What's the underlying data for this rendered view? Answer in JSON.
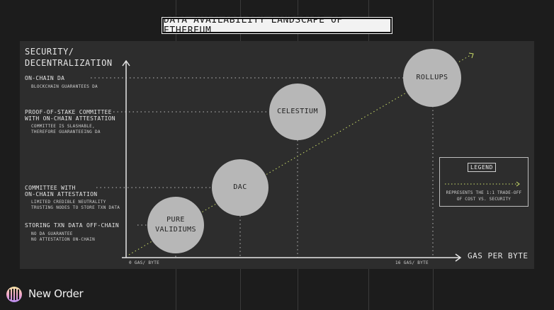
{
  "title": "DATA AVAILABILITY LANDSCAPE OF ETHEREUM",
  "y_axis_title": "SECURITY/\nDECENTRALIZATION",
  "x_axis_title": "GAS PER BYTE",
  "x_ticks": [
    "0 GAS/ BYTE",
    "16 GAS/ BYTE"
  ],
  "levels": [
    {
      "title": "ON-CHAIN DA",
      "desc": "BLOCKCHAIN GUARANTEES DA"
    },
    {
      "title": "PROOF-OF-STAKE COMMITTEE\nWITH ON-CHAIN ATTESTATION",
      "desc": "COMMITTEE IS SLASHABLE,\nTHEREFORE GUARANTEEING DA"
    },
    {
      "title": "COMMITTEE WITH\nON-CHAIN ATTESTATION",
      "desc": "LIMITED CREDIBLE NEUTRALITY\nTRUSTING NODES TO STORE TXN DATA"
    },
    {
      "title": "STORING TXN DATA OFF-CHAIN",
      "desc": "NO DA GUARANTEE\nNO ATTESTATION ON-CHAIN"
    }
  ],
  "bubbles": [
    {
      "label": "PURE\nVALIDIUMS"
    },
    {
      "label": "DAC"
    },
    {
      "label": "CELESTIUM"
    },
    {
      "label": "ROLLUPS"
    }
  ],
  "legend": {
    "title": "LEGEND",
    "text": "REPRESENTS THE 1:1 TRADE-OFF\nOF COST VS. SECURITY"
  },
  "brand": {
    "name": "New Order"
  },
  "colors": {
    "background": "#1c1c1c",
    "panel": "#2d2d2d",
    "bubble": "#b7b7b7",
    "trend_line": "#cde06a",
    "level_line": "#bdbdbd"
  }
}
